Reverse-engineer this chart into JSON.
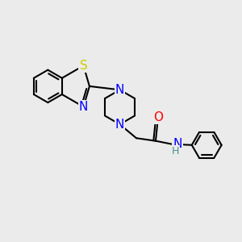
{
  "bg_color": "#ebebeb",
  "bond_color": "#000000",
  "bond_width": 1.5,
  "atom_colors": {
    "S": "#cccc00",
    "N": "#0000ff",
    "O": "#ff0000",
    "H": "#4a9090"
  },
  "font_size": 10,
  "figsize": [
    3.0,
    3.0
  ],
  "dpi": 100
}
